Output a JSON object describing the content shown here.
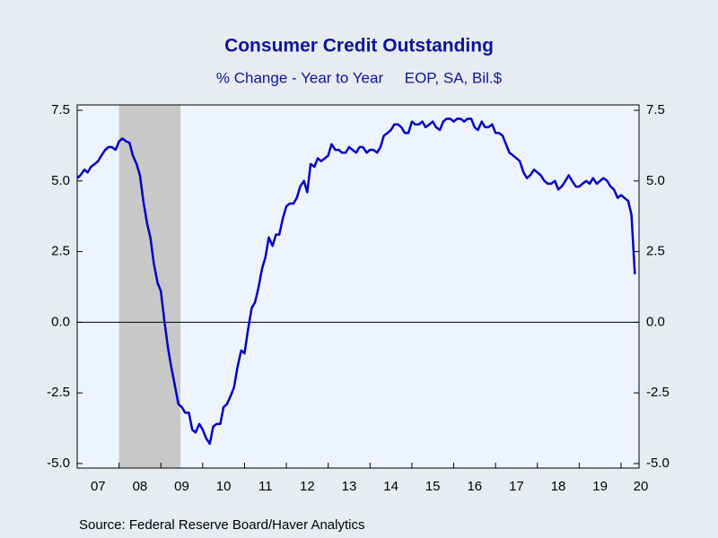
{
  "chart_data": {
    "type": "line",
    "title": "Consumer Credit Outstanding",
    "subtitle": "% Change - Year to Year     EOP, SA, Bil.$",
    "source": "Source:  Federal Reserve Board/Haver Analytics",
    "x": [
      2007.0,
      2007.08,
      2007.17,
      2007.25,
      2007.33,
      2007.42,
      2007.5,
      2007.58,
      2007.67,
      2007.75,
      2007.83,
      2007.92,
      2008.0,
      2008.08,
      2008.17,
      2008.25,
      2008.33,
      2008.42,
      2008.5,
      2008.58,
      2008.67,
      2008.75,
      2008.83,
      2008.92,
      2009.0,
      2009.08,
      2009.17,
      2009.25,
      2009.33,
      2009.42,
      2009.5,
      2009.58,
      2009.67,
      2009.75,
      2009.83,
      2009.92,
      2010.0,
      2010.08,
      2010.17,
      2010.25,
      2010.33,
      2010.42,
      2010.5,
      2010.58,
      2010.67,
      2010.75,
      2010.83,
      2010.92,
      2011.0,
      2011.08,
      2011.17,
      2011.25,
      2011.33,
      2011.42,
      2011.5,
      2011.58,
      2011.67,
      2011.75,
      2011.83,
      2011.92,
      2012.0,
      2012.08,
      2012.17,
      2012.25,
      2012.33,
      2012.42,
      2012.5,
      2012.58,
      2012.67,
      2012.75,
      2012.83,
      2012.92,
      2013.0,
      2013.08,
      2013.17,
      2013.25,
      2013.33,
      2013.42,
      2013.5,
      2013.58,
      2013.67,
      2013.75,
      2013.83,
      2013.92,
      2014.0,
      2014.08,
      2014.17,
      2014.25,
      2014.33,
      2014.42,
      2014.5,
      2014.58,
      2014.67,
      2014.75,
      2014.83,
      2014.92,
      2015.0,
      2015.08,
      2015.17,
      2015.25,
      2015.33,
      2015.42,
      2015.5,
      2015.58,
      2015.67,
      2015.75,
      2015.83,
      2015.92,
      2016.0,
      2016.08,
      2016.17,
      2016.25,
      2016.33,
      2016.42,
      2016.5,
      2016.58,
      2016.67,
      2016.75,
      2016.83,
      2016.92,
      2017.0,
      2017.08,
      2017.17,
      2017.25,
      2017.33,
      2017.42,
      2017.5,
      2017.58,
      2017.67,
      2017.75,
      2017.83,
      2017.92,
      2018.0,
      2018.08,
      2018.17,
      2018.25,
      2018.33,
      2018.42,
      2018.5,
      2018.58,
      2018.67,
      2018.75,
      2018.83,
      2018.92,
      2019.0,
      2019.08,
      2019.17,
      2019.25,
      2019.33,
      2019.42,
      2019.5,
      2019.58,
      2019.67,
      2019.75,
      2019.83,
      2019.92,
      2020.0,
      2020.08,
      2020.17,
      2020.25,
      2020.33
    ],
    "series": [
      {
        "color": "#0000c8",
        "values": [
          5.1,
          5.2,
          5.4,
          5.3,
          5.5,
          5.6,
          5.7,
          5.9,
          6.1,
          6.2,
          6.2,
          6.1,
          6.4,
          6.5,
          6.4,
          6.35,
          5.9,
          5.6,
          5.2,
          4.3,
          3.5,
          3.0,
          2.1,
          1.4,
          1.1,
          0.1,
          -0.9,
          -1.6,
          -2.2,
          -2.9,
          -3.0,
          -3.2,
          -3.2,
          -3.8,
          -3.9,
          -3.6,
          -3.8,
          -4.1,
          -4.3,
          -3.7,
          -3.6,
          -3.6,
          -3.0,
          -2.9,
          -2.6,
          -2.3,
          -1.6,
          -1.0,
          -1.1,
          -0.3,
          0.5,
          0.7,
          1.2,
          1.9,
          2.3,
          3.0,
          2.7,
          3.1,
          3.1,
          3.7,
          4.1,
          4.2,
          4.2,
          4.4,
          4.8,
          5.0,
          4.6,
          5.6,
          5.5,
          5.8,
          5.7,
          5.8,
          5.9,
          6.3,
          6.1,
          6.1,
          6.0,
          6.0,
          6.2,
          6.1,
          6.0,
          6.2,
          6.2,
          6.0,
          6.1,
          6.1,
          6.0,
          6.2,
          6.6,
          6.7,
          6.8,
          7.0,
          7.0,
          6.9,
          6.7,
          6.7,
          7.1,
          7.0,
          7.0,
          7.1,
          6.9,
          7.0,
          7.1,
          6.9,
          6.8,
          7.1,
          7.2,
          7.2,
          7.1,
          7.2,
          7.2,
          7.1,
          7.2,
          7.2,
          6.9,
          6.8,
          7.1,
          6.9,
          6.9,
          7.0,
          6.7,
          6.7,
          6.6,
          6.3,
          6.0,
          5.9,
          5.8,
          5.7,
          5.3,
          5.1,
          5.2,
          5.4,
          5.3,
          5.2,
          5.0,
          4.9,
          4.9,
          5.0,
          4.7,
          4.8,
          5.0,
          5.2,
          5.0,
          4.8,
          4.8,
          4.9,
          5.0,
          4.9,
          5.1,
          4.9,
          5.0,
          5.1,
          5.0,
          4.8,
          4.7,
          4.4,
          4.5,
          4.4,
          4.3,
          3.8,
          1.7
        ]
      }
    ],
    "recession": [
      [
        2008.0,
        2009.47
      ]
    ],
    "recession_color": "#c8c8c8",
    "xlim": [
      2007.0,
      2020.43
    ],
    "xticks": [
      {
        "value": 2007,
        "label": "07"
      },
      {
        "value": 2008,
        "label": "08"
      },
      {
        "value": 2009,
        "label": "09"
      },
      {
        "value": 2010,
        "label": "10"
      },
      {
        "value": 2011,
        "label": "11"
      },
      {
        "value": 2012,
        "label": "12"
      },
      {
        "value": 2013,
        "label": "13"
      },
      {
        "value": 2014,
        "label": "14"
      },
      {
        "value": 2015,
        "label": "15"
      },
      {
        "value": 2016,
        "label": "16"
      },
      {
        "value": 2017,
        "label": "17"
      },
      {
        "value": 2018,
        "label": "18"
      },
      {
        "value": 2019,
        "label": "19"
      },
      {
        "value": 2020,
        "label": "20"
      }
    ],
    "ylim": [
      -5.16,
      7.69
    ],
    "yticks": [
      {
        "value": 7.5,
        "label": "7.5"
      },
      {
        "value": 5,
        "label": "5.0"
      },
      {
        "value": 2.5,
        "label": "2.5"
      },
      {
        "value": 0,
        "label": "0.0"
      },
      {
        "value": -2.5,
        "label": "-2.5"
      },
      {
        "value": -5,
        "label": "-5.0"
      }
    ]
  }
}
